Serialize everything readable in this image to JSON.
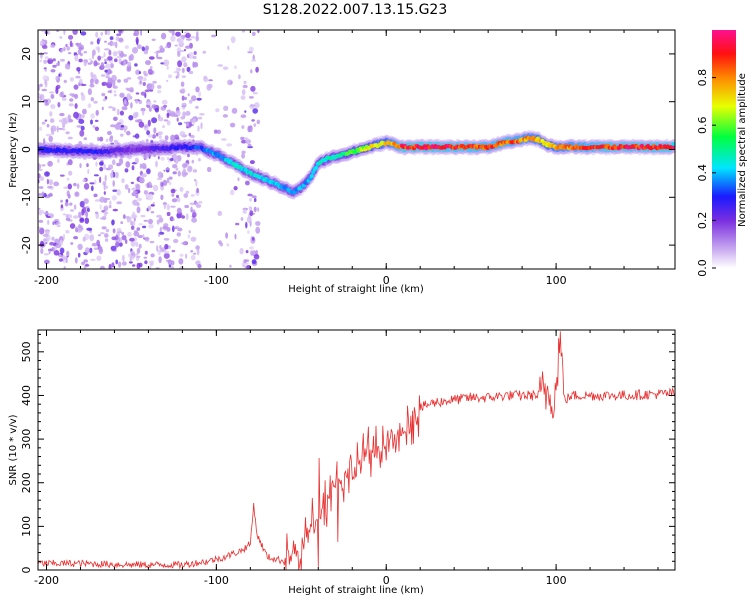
{
  "title": "S128.2022.007.13.15.G23",
  "chart_data": [
    {
      "type": "heatmap",
      "xlabel": "Height of straight line (km)",
      "ylabel": "Frequency (Hz)",
      "xlim": [
        -205,
        170
      ],
      "ylim": [
        -25,
        25
      ],
      "xticks": [
        -200,
        -100,
        0,
        100
      ],
      "yticks": [
        -20,
        -10,
        0,
        10,
        20
      ],
      "xtick_labels": [
        "-200",
        "-100",
        "0",
        "100"
      ],
      "ytick_labels": [
        "-20",
        "-10",
        "0",
        "10",
        "20"
      ],
      "colorbar": {
        "label": "Normalized spectral amplitude",
        "range": [
          0,
          1
        ],
        "ticks": [
          0,
          0.2,
          0.4,
          0.6,
          0.8
        ],
        "tick_labels": [
          "0.0",
          "0.2",
          "0.4",
          "0.6",
          "0.8"
        ],
        "colors": [
          "#ffffff",
          "#c8a8f0",
          "#7a2ee0",
          "#1a1aff",
          "#00e5ff",
          "#00ff40",
          "#e8ff00",
          "#ff8800",
          "#ff1010",
          "#ff1090"
        ]
      },
      "ridge": {
        "description_x": [
          -205,
          -170,
          -150,
          -120,
          -110,
          -100,
          -90,
          -80,
          -70,
          -60,
          -55,
          -50,
          -45,
          -40,
          -35,
          -30,
          -25,
          -20,
          -15,
          -10,
          -5,
          0,
          10,
          20,
          40,
          60,
          70,
          80,
          85,
          90,
          95,
          100,
          120,
          140,
          170
        ],
        "frequency_hz": [
          0,
          -0.5,
          0,
          0.5,
          0.5,
          -1,
          -3,
          -5,
          -6.5,
          -8,
          -9,
          -8,
          -6,
          -3,
          -2,
          -1.5,
          -1,
          -0.5,
          0,
          0.5,
          1,
          1.5,
          0.5,
          0.5,
          0.5,
          0.5,
          1.5,
          2,
          2.5,
          2,
          1,
          0.5,
          0.5,
          0.5,
          0.5
        ],
        "amplitude": [
          0.3,
          0.3,
          0.2,
          0.3,
          0.35,
          0.4,
          0.45,
          0.45,
          0.45,
          0.4,
          0.4,
          0.4,
          0.4,
          0.45,
          0.5,
          0.5,
          0.55,
          0.6,
          0.65,
          0.7,
          0.75,
          0.75,
          0.95,
          0.98,
          0.95,
          0.9,
          0.9,
          0.85,
          0.8,
          0.8,
          0.75,
          0.8,
          0.9,
          0.95,
          0.95
        ]
      },
      "scatter_noise_x_range": [
        -205,
        -75
      ]
    },
    {
      "type": "line",
      "xlabel": "Height of straight line (km)",
      "ylabel": "SNR (10 * v/v)",
      "xlim": [
        -205,
        170
      ],
      "ylim": [
        0,
        550
      ],
      "xticks": [
        -200,
        -100,
        0,
        100
      ],
      "yticks": [
        0,
        100,
        200,
        300,
        400,
        500
      ],
      "xtick_labels": [
        "-200",
        "-100",
        "0",
        "100"
      ],
      "ytick_labels": [
        "0",
        "100",
        "200",
        "300",
        "400",
        "500"
      ],
      "series": [
        {
          "color": "#e83030",
          "x": [
            -205,
            -180,
            -150,
            -120,
            -105,
            -95,
            -85,
            -80,
            -78,
            -76,
            -70,
            -60,
            -55,
            -50,
            -45,
            -40,
            -35,
            -30,
            -25,
            -20,
            -15,
            -10,
            -5,
            0,
            5,
            10,
            15,
            20,
            25,
            30,
            40,
            50,
            60,
            70,
            80,
            90,
            95,
            100,
            102,
            105,
            110,
            120,
            140,
            170
          ],
          "y": [
            15,
            15,
            12,
            12,
            20,
            30,
            45,
            60,
            150,
            80,
            30,
            20,
            30,
            50,
            90,
            130,
            170,
            200,
            210,
            220,
            250,
            270,
            280,
            290,
            300,
            310,
            330,
            370,
            380,
            385,
            390,
            395,
            395,
            400,
            400,
            400,
            410,
            400,
            545,
            390,
            400,
            400,
            400,
            405
          ]
        }
      ]
    }
  ]
}
